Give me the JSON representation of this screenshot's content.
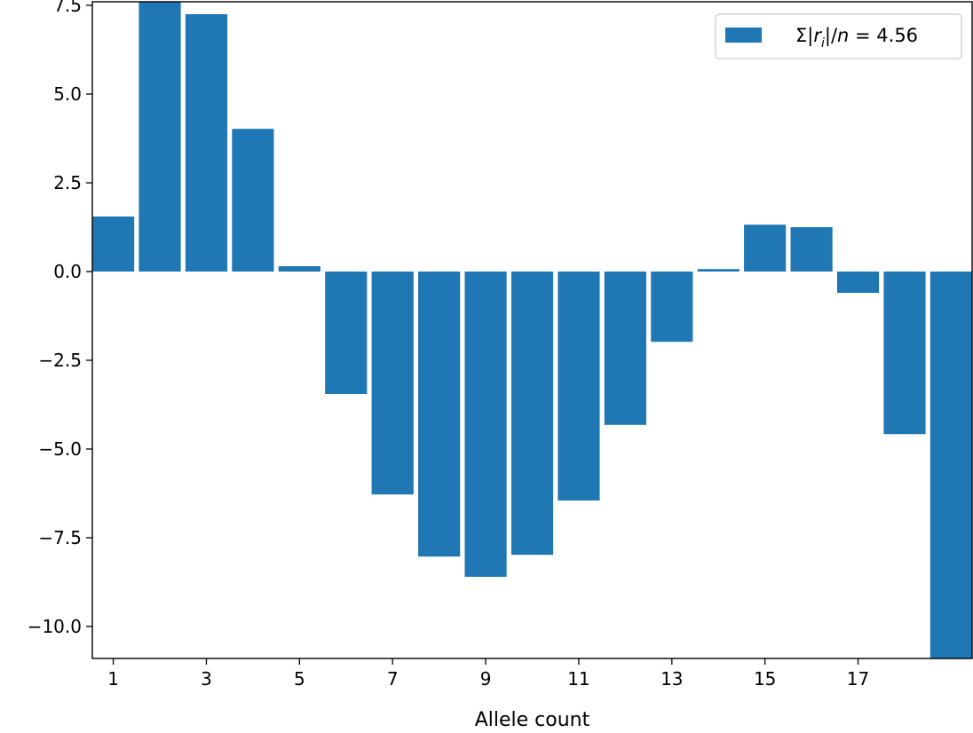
{
  "chart_data": {
    "type": "bar",
    "x": [
      1,
      2,
      3,
      4,
      5,
      6,
      7,
      8,
      9,
      10,
      11,
      12,
      13,
      14,
      15,
      16,
      17,
      18,
      19
    ],
    "values": [
      1.55,
      7.7,
      7.25,
      4.02,
      0.15,
      -3.45,
      -6.28,
      -8.03,
      -8.6,
      -7.98,
      -6.45,
      -4.32,
      -1.98,
      0.07,
      1.32,
      1.25,
      -0.6,
      -4.58,
      -11.0
    ],
    "bar_color": "#1f77b4",
    "title": "",
    "xlabel": "Allele count",
    "ylabel": "",
    "xticks": [
      1,
      3,
      5,
      7,
      9,
      11,
      13,
      15,
      17
    ],
    "xtick_labels": [
      "1",
      "3",
      "5",
      "7",
      "9",
      "11",
      "13",
      "15",
      "17"
    ],
    "xlim": [
      0.55,
      19.45
    ],
    "ylim": [
      -10.9,
      7.6
    ],
    "yticks": [
      -10.0,
      -7.5,
      -5.0,
      -2.5,
      0.0,
      2.5,
      5.0,
      7.5
    ],
    "ytick_labels": [
      "−10.0",
      "−7.5",
      "−5.0",
      "−2.5",
      "0.0",
      "2.5",
      "5.0",
      "7.5"
    ],
    "grid": false,
    "legend": {
      "position": "top-right",
      "entries": [
        {
          "label_prefix": "Σ|",
          "label_r": "r",
          "label_sub": "i",
          "label_mid": "|/",
          "label_n": "n",
          "label_suffix": " = 4.56",
          "color": "#1f77b4"
        }
      ]
    }
  }
}
